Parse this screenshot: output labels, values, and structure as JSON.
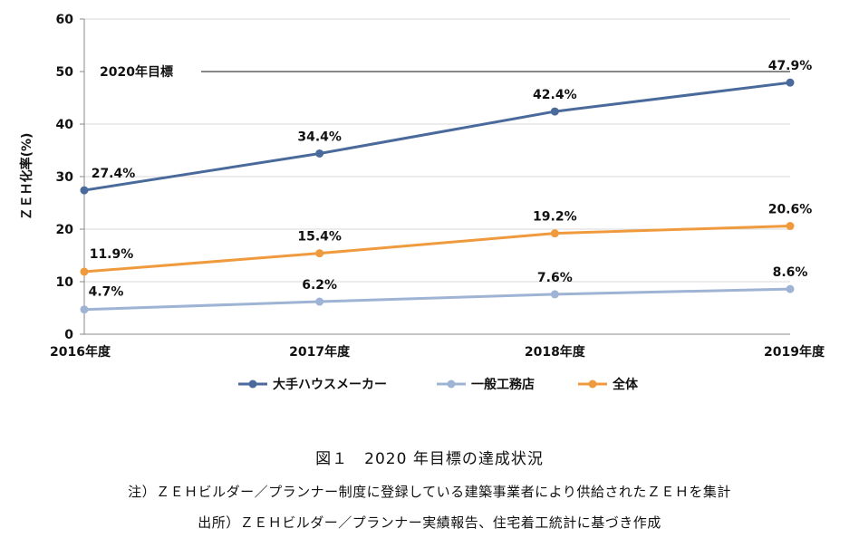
{
  "figure": {
    "title": "図１　2020 年目標の達成状況",
    "note": "注）ＺＥＨビルダー／プランナー制度に登録している建築事業者により供給されたＺＥＨを集計",
    "source": "出所）ＺＥＨビルダー／プランナー実績報告、住宅着工統計に基づき作成"
  },
  "chart_data": {
    "type": "line",
    "title": "",
    "xlabel": "",
    "ylabel": "ＺＥＨ化率(%)",
    "categories": [
      "2016年度",
      "2017年度",
      "2018年度",
      "2019年度"
    ],
    "ylim": [
      0,
      60
    ],
    "yticks": [
      0,
      10,
      20,
      30,
      40,
      50,
      60
    ],
    "grid": true,
    "legend_position": "bottom",
    "series": [
      {
        "name": "大手ハウスメーカー",
        "color": "#4a6a9c",
        "values": [
          27.4,
          34.4,
          42.4,
          47.9
        ],
        "labels": [
          "27.4%",
          "34.4%",
          "42.4%",
          "47.9%"
        ]
      },
      {
        "name": "一般工務店",
        "color": "#9fb4d4",
        "values": [
          4.7,
          6.2,
          7.6,
          8.6
        ],
        "labels": [
          "4.7%",
          "6.2%",
          "7.6%",
          "8.6%"
        ]
      },
      {
        "name": "全体",
        "color": "#f09a3e",
        "values": [
          11.9,
          15.4,
          19.2,
          20.6
        ],
        "labels": [
          "11.9%",
          "15.4%",
          "19.2%",
          "20.6%"
        ]
      }
    ],
    "reference_line": {
      "label": "2020年目標",
      "value": 50
    }
  }
}
